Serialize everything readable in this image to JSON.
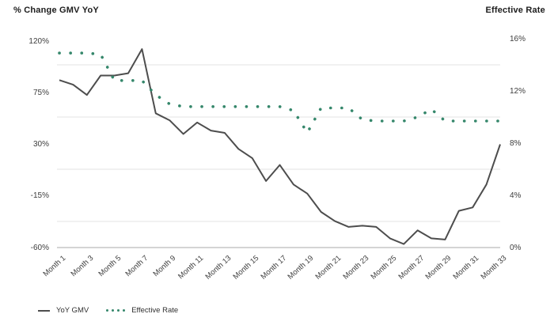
{
  "header": {
    "left_axis_title": "% Change GMV YoY",
    "right_axis_title": "Effective Rate"
  },
  "colors": {
    "yoy_gmv_line": "#4d4d4d",
    "effective_rate_dots": "#35876b",
    "gridline": "#e3e3e3",
    "x_axis_line": "#bbbbbb"
  },
  "chart_data": {
    "type": "line",
    "title": "",
    "x_months": [
      1,
      2,
      3,
      4,
      5,
      6,
      7,
      8,
      9,
      10,
      11,
      12,
      13,
      14,
      15,
      16,
      17,
      18,
      19,
      20,
      21,
      22,
      23,
      24,
      25,
      26,
      27,
      28,
      29,
      30,
      31,
      32,
      33
    ],
    "x_tick_labels": [
      "Month 1",
      "Month 3",
      "Month 5",
      "Month 7",
      "Month 9",
      "Month 11",
      "Month 13",
      "Month 15",
      "Month 17",
      "Month 19",
      "Month 21",
      "Month 23",
      "Month 25",
      "Month 27",
      "Month 29",
      "Month 31",
      "Month 33"
    ],
    "left_axis": {
      "title": "% Change GMV YoY",
      "tick_labels": [
        "120%",
        "75%",
        "30%",
        "-15%",
        "-60%"
      ],
      "tick_values": [
        120,
        75,
        30,
        -15,
        -60
      ],
      "range": [
        -60,
        120
      ]
    },
    "right_axis": {
      "title": "Effective Rate",
      "tick_labels": [
        "16%",
        "12%",
        "8%",
        "4%",
        "0%"
      ],
      "tick_values": [
        16,
        12,
        8,
        4,
        0
      ],
      "range": [
        0,
        16
      ]
    },
    "gridlines_at_right_axis_values": [
      14,
      10,
      6,
      2
    ],
    "legend_position": "bottom-left",
    "series": [
      {
        "name": "YoY GMV",
        "axis": "left",
        "style": "solid",
        "values": [
          86,
          82,
          73,
          90,
          90,
          92,
          113,
          57,
          51,
          39,
          49,
          42,
          40,
          26,
          18,
          -2,
          12,
          -5,
          -13,
          -29,
          -37,
          -42,
          -41,
          -42,
          -52,
          -57,
          -45,
          -52,
          -53,
          -28,
          -25,
          -5,
          30
        ]
      },
      {
        "name": "Effective Rate",
        "axis": "right",
        "style": "dotted",
        "values": [
          14.9,
          14.9,
          14.9,
          14.8,
          12.8,
          12.8,
          12.8,
          11.7,
          11.0,
          10.8,
          10.8,
          10.8,
          10.8,
          10.8,
          10.8,
          10.8,
          10.8,
          10.5,
          8.8,
          10.7,
          10.7,
          10.7,
          9.8,
          9.7,
          9.7,
          9.7,
          10.0,
          10.6,
          9.7,
          9.7,
          9.7,
          9.7,
          9.7
        ]
      }
    ]
  },
  "legend": {
    "items": [
      {
        "label": "YoY GMV",
        "swatch": "line"
      },
      {
        "label": "Effective Rate",
        "swatch": "dots"
      }
    ]
  }
}
